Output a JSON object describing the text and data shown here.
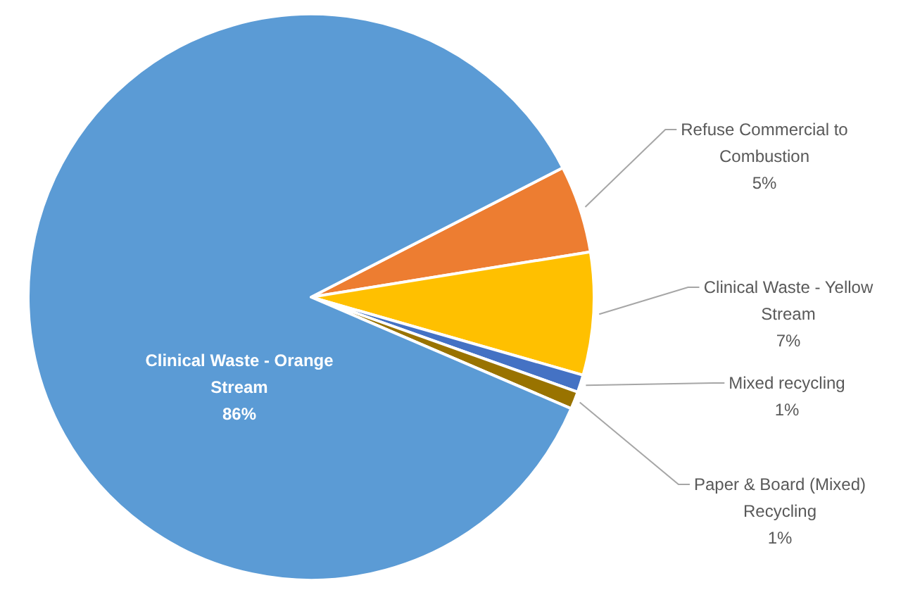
{
  "chart_data": {
    "type": "pie",
    "categories": [
      "Refuse Commercial to Combustion",
      "Clinical Waste - Yellow Stream",
      "Mixed recycling",
      "Paper & Board (Mixed) Recycling",
      "Clinical Waste - Orange Stream"
    ],
    "values": [
      5,
      7,
      1,
      1,
      86
    ],
    "colors": [
      "#ed7d31",
      "#ffc000",
      "#4472c4",
      "#997300",
      "#5b9bd5"
    ],
    "value_labels": [
      "5%",
      "7%",
      "1%",
      "1%",
      "86%"
    ]
  }
}
